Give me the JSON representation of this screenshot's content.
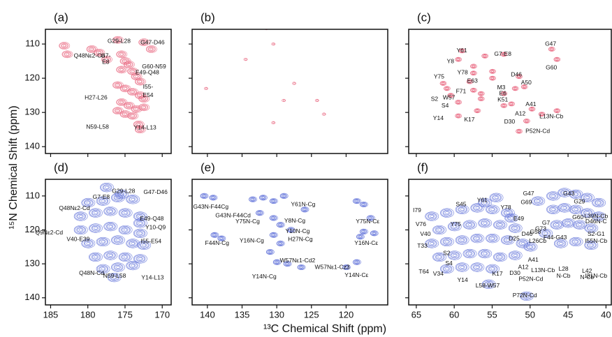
{
  "figure": {
    "ylabel": "¹⁵N Chemical Shift (ppm)",
    "xlabel": "¹³C Chemical Shift (ppm)"
  },
  "chart_data": [
    {
      "type": "contour",
      "title": "(a)",
      "color": "#e8607a",
      "xlim": [
        185.7,
        168.8
      ],
      "ylim": [
        105.7,
        142
      ],
      "xticks": [
        185,
        180,
        175,
        170
      ],
      "yticks": [
        110,
        120,
        130,
        140
      ],
      "xtick_labels": false,
      "ytick_labels": true,
      "peaks": {
        "x": [
          183.2,
          182.8,
          179.5,
          177.5,
          176.0,
          175.5,
          175.0,
          174.5,
          174.0,
          173.5,
          173.0,
          176.0,
          175.0,
          174.0,
          173.0,
          172.5,
          175.5,
          174.5,
          173.5,
          176.0,
          175.0,
          174.0,
          172.5,
          171.5,
          172.5,
          175.5,
          173.2,
          173.0,
          178.5
        ],
        "y": [
          110.5,
          113.0,
          111.5,
          114.5,
          108.8,
          113.0,
          115.0,
          116.0,
          118.0,
          119.5,
          121.0,
          122.0,
          123.0,
          124.0,
          125.0,
          126.0,
          127.0,
          128.0,
          129.0,
          129.5,
          130.5,
          131.0,
          128.5,
          111.5,
          109.5,
          117.5,
          133.5,
          135.0,
          112.5
        ]
      },
      "annotations": [
        {
          "text": "Q48Nε2-Cd",
          "x": 179.8,
          "y": 113.5
        },
        {
          "text": "G29-L28",
          "x": 175.8,
          "y": 109.2
        },
        {
          "text": "G47-D46",
          "x": 171.3,
          "y": 109.6
        },
        {
          "text": "G7-",
          "x": 177.6,
          "y": 113.5
        },
        {
          "text": "E8",
          "x": 177.6,
          "y": 115.3
        },
        {
          "text": "G60-N59",
          "x": 171.1,
          "y": 116.7
        },
        {
          "text": "E49-Q48",
          "x": 172.0,
          "y": 118.4
        },
        {
          "text": "I55-",
          "x": 171.9,
          "y": 122.6
        },
        {
          "text": "E54",
          "x": 171.9,
          "y": 125.0
        },
        {
          "text": "H27-L26",
          "x": 178.9,
          "y": 125.7
        },
        {
          "text": "N59-L58",
          "x": 178.7,
          "y": 134.3
        },
        {
          "text": "Y14-L13",
          "x": 172.3,
          "y": 134.5
        }
      ]
    },
    {
      "type": "contour",
      "title": "(b)",
      "color": "#e8607a",
      "xlim": [
        142.2,
        114
      ],
      "ylim": [
        105.7,
        142
      ],
      "xticks": [
        140,
        135,
        130,
        125,
        120
      ],
      "yticks": [
        110,
        120,
        130,
        140
      ],
      "xtick_labels": false,
      "ytick_labels": false,
      "peaks": {
        "x": [
          131.5,
          130.5,
          140.2,
          127.5,
          124.2,
          123.2,
          130.5,
          134.5,
          129.0
        ],
        "y": [
          105.5,
          110.0,
          123.0,
          121.5,
          126.5,
          130.5,
          133.0,
          114.5,
          126.5
        ]
      },
      "annotations": []
    },
    {
      "type": "contour",
      "title": "(c)",
      "color": "#e8607a",
      "xlim": [
        66,
        39.3
      ],
      "ylim": [
        105.7,
        142
      ],
      "xticks": [
        65,
        60,
        55,
        50,
        45,
        40
      ],
      "yticks": [
        110,
        120,
        130,
        140
      ],
      "xtick_labels": false,
      "ytick_labels": false,
      "peaks": {
        "x": [
          59.5,
          59.0,
          57.5,
          56.0,
          53.5,
          47.2,
          46.5,
          55.0,
          61.5,
          58.0,
          57.5,
          60.5,
          59.5,
          56.5,
          57.0,
          53.5,
          52.5,
          51.5,
          50.8,
          49.8,
          50.5,
          61.0,
          59.5,
          56.5,
          55.0,
          52.0,
          48.5,
          46.5,
          57.5,
          53.5,
          51.5
        ],
        "y": [
          114.5,
          112.0,
          116.5,
          113.5,
          113.0,
          111.5,
          114.5,
          118.0,
          121.5,
          121.0,
          123.5,
          125.0,
          127.0,
          126.0,
          129.5,
          124.5,
          127.5,
          119.5,
          122.5,
          129.0,
          132.5,
          123.0,
          131.0,
          124.5,
          120.0,
          123.0,
          130.5,
          129.5,
          118.5,
          128.0,
          135.5
        ]
      },
      "annotations": [
        {
          "text": "Y61",
          "x": 59.0,
          "y": 112.0
        },
        {
          "text": "G7-E8",
          "x": 53.6,
          "y": 113.0
        },
        {
          "text": "G47",
          "x": 47.3,
          "y": 110.0
        },
        {
          "text": "Y8",
          "x": 60.5,
          "y": 115.1
        },
        {
          "text": "G60",
          "x": 47.2,
          "y": 117.0
        },
        {
          "text": "Y78",
          "x": 58.9,
          "y": 118.4
        },
        {
          "text": "Y75",
          "x": 62.0,
          "y": 119.6
        },
        {
          "text": "D46",
          "x": 51.8,
          "y": 119.0
        },
        {
          "text": "A50",
          "x": 50.5,
          "y": 121.4
        },
        {
          "text": "E63",
          "x": 57.6,
          "y": 120.8
        },
        {
          "text": "M3",
          "x": 53.8,
          "y": 122.8
        },
        {
          "text": "E6",
          "x": 53.6,
          "y": 124.5
        },
        {
          "text": "F71",
          "x": 59.1,
          "y": 123.9
        },
        {
          "text": "W57",
          "x": 60.7,
          "y": 125.7
        },
        {
          "text": "K51",
          "x": 53.6,
          "y": 126.3
        },
        {
          "text": "S2",
          "x": 62.6,
          "y": 126.1
        },
        {
          "text": "S4",
          "x": 61.2,
          "y": 128.1
        },
        {
          "text": "A41",
          "x": 49.9,
          "y": 127.7
        },
        {
          "text": "A12",
          "x": 51.3,
          "y": 130.4
        },
        {
          "text": "Y14",
          "x": 62.1,
          "y": 131.8
        },
        {
          "text": "K17",
          "x": 58.0,
          "y": 132.2
        },
        {
          "text": "D30",
          "x": 52.7,
          "y": 132.8
        },
        {
          "text": "L13N-Cb",
          "x": 47.2,
          "y": 131.2
        },
        {
          "text": "P52N-Cd",
          "x": 49.0,
          "y": 135.5
        }
      ]
    },
    {
      "type": "contour",
      "title": "(d)",
      "color": "#5466d6",
      "xlim": [
        185.7,
        168.8
      ],
      "ylim": [
        105.1,
        142.1
      ],
      "xticks": [
        185,
        180,
        175,
        170
      ],
      "yticks": [
        110,
        120,
        130,
        140
      ],
      "xtick_labels": true,
      "ytick_labels": true,
      "peaks": {
        "x": [
          180,
          178,
          176,
          174,
          181,
          179,
          177,
          175,
          173,
          181,
          179,
          177,
          175,
          173,
          180,
          178,
          176,
          174,
          172.5,
          179,
          177,
          175,
          173,
          178,
          176,
          174,
          175.5,
          177.5,
          173,
          176.5
        ],
        "y": [
          112,
          111.5,
          110.5,
          111,
          116,
          115,
          114.5,
          115,
          116,
          120,
          119.5,
          119,
          120,
          121,
          124,
          123.5,
          123,
          124,
          124.5,
          128,
          127.5,
          128,
          128.5,
          131.5,
          131,
          130.5,
          109.5,
          107.5,
          118,
          134
        ]
      },
      "annotations": [
        {
          "text": "G7-E8",
          "x": 178.2,
          "y": 110.4
        },
        {
          "text": "G29-L28",
          "x": 175.2,
          "y": 108.6
        },
        {
          "text": "G47-D46",
          "x": 170.9,
          "y": 109.0
        },
        {
          "text": "Q48Nε2-Cd",
          "x": 181.8,
          "y": 113.7
        },
        {
          "text": "E49-Q48",
          "x": 171.4,
          "y": 116.8
        },
        {
          "text": "Y10-Q9",
          "x": 170.9,
          "y": 119.3
        },
        {
          "text": "Q9Nε2-Cd",
          "x": 185.2,
          "y": 120.9
        },
        {
          "text": "V40-E39",
          "x": 181.3,
          "y": 122.8
        },
        {
          "text": "I55-E54",
          "x": 171.5,
          "y": 123.4
        },
        {
          "text": "Q48N-Cd",
          "x": 179.5,
          "y": 132.8
        },
        {
          "text": "N59-L58",
          "x": 176.4,
          "y": 133.6
        },
        {
          "text": "Y14-L13",
          "x": 171.3,
          "y": 134.1
        }
      ]
    },
    {
      "type": "contour",
      "title": "(e)",
      "color": "#5466d6",
      "xlim": [
        142.2,
        114
      ],
      "ylim": [
        105.1,
        142.1
      ],
      "xticks": [
        140,
        135,
        130,
        125,
        120
      ],
      "yticks": [
        110,
        120,
        130,
        140
      ],
      "xtick_labels": true,
      "ytick_labels": false,
      "peaks": {
        "x": [
          140.5,
          139.2,
          133.5,
          132.0,
          130.5,
          129.0,
          132.5,
          130.5,
          129.5,
          128.0,
          130.5,
          129.5,
          131.0,
          139.0,
          138.0,
          130.0,
          128.5,
          126.5,
          118.5,
          117.5,
          116.5,
          117.5,
          118.0,
          116.0,
          118.5,
          120.0,
          126.0
        ],
        "y": [
          110.0,
          110.5,
          111.0,
          110.5,
          111.5,
          110.0,
          115.0,
          116.5,
          118.5,
          120.0,
          121.5,
          124.0,
          126.5,
          121.5,
          122.5,
          129.5,
          130.0,
          131.0,
          111.5,
          112.5,
          116.5,
          120.5,
          122.0,
          121.0,
          129.5,
          131.0,
          114.0
        ]
      },
      "annotations": [
        {
          "text": "G43N-F44Cg",
          "x": 139.5,
          "y": 113.3
        },
        {
          "text": "Y61N-Cg",
          "x": 126.2,
          "y": 112.5
        },
        {
          "text": "G43N-F44Cd",
          "x": 136.3,
          "y": 115.8
        },
        {
          "text": "Y75N-Cg",
          "x": 134.2,
          "y": 117.6
        },
        {
          "text": "Y8N-Cg",
          "x": 127.4,
          "y": 117.4
        },
        {
          "text": "Y10N-Cg",
          "x": 127.0,
          "y": 120.5
        },
        {
          "text": "Y16N-Cg",
          "x": 133.6,
          "y": 123.2
        },
        {
          "text": "H27N-Cg",
          "x": 126.6,
          "y": 122.8
        },
        {
          "text": "F44N-Cg",
          "x": 138.6,
          "y": 124.0
        },
        {
          "text": "W57Nε1-Cd2",
          "x": 127.0,
          "y": 129.1
        },
        {
          "text": "W57Nε1-Cz3",
          "x": 122.0,
          "y": 131.0
        },
        {
          "text": "Y14N-Cg",
          "x": 131.8,
          "y": 133.8
        },
        {
          "text": "Y75N-Cε",
          "x": 116.9,
          "y": 117.6
        },
        {
          "text": "Y16N-Cε",
          "x": 117.1,
          "y": 124.0
        },
        {
          "text": "Y14N-Cε",
          "x": 118.5,
          "y": 133.4
        }
      ]
    },
    {
      "type": "contour",
      "title": "(f)",
      "color": "#5466d6",
      "xlim": [
        66,
        39.3
      ],
      "ylim": [
        105.1,
        142.1
      ],
      "xticks": [
        65,
        60,
        55,
        50,
        45,
        40
      ],
      "yticks": [
        110,
        120,
        130,
        140
      ],
      "xtick_labels": true,
      "ytick_labels": false,
      "peaks": {
        "x": [
          63,
          61,
          59,
          57,
          55,
          53,
          62,
          60,
          58,
          56,
          54,
          52,
          63,
          61,
          59,
          57,
          55,
          53,
          51,
          62,
          60,
          58,
          56,
          54,
          61,
          59,
          57,
          55,
          47,
          45.5,
          44,
          42.5,
          41,
          47,
          45.5,
          44,
          42.5,
          41,
          46.5,
          45,
          43.5,
          42,
          46,
          44,
          42,
          48,
          50,
          52,
          55.5,
          50.5,
          56,
          54.5,
          49,
          52.5
        ],
        "y": [
          116,
          115,
          114,
          113.5,
          114,
          115,
          120,
          119,
          118.5,
          118,
          118.5,
          119.5,
          124,
          123.5,
          123,
          122.5,
          122.5,
          123,
          124,
          128,
          127.5,
          127,
          127,
          128,
          131.5,
          131,
          131,
          131.5,
          110,
          109,
          109.5,
          110.5,
          112,
          114,
          113.5,
          114,
          115,
          116,
          118.5,
          118,
          118.5,
          119.5,
          124,
          123.5,
          124.5,
          121,
          125,
          127.5,
          136,
          139.5,
          112,
          110.5,
          111.5,
          116.5
        ]
      },
      "annotations": [
        {
          "text": "S45",
          "x": 59.1,
          "y": 112.5
        },
        {
          "text": "Y61",
          "x": 56.3,
          "y": 111.3
        },
        {
          "text": "G47",
          "x": 50.2,
          "y": 109.4
        },
        {
          "text": "G43",
          "x": 44.9,
          "y": 109.4
        },
        {
          "text": "G29",
          "x": 43.5,
          "y": 111.7
        },
        {
          "text": "G69",
          "x": 50.5,
          "y": 111.9
        },
        {
          "text": "Y78",
          "x": 53.2,
          "y": 113.5
        },
        {
          "text": "I79",
          "x": 64.9,
          "y": 114.3
        },
        {
          "text": "E49",
          "x": 51.5,
          "y": 116.8
        },
        {
          "text": "G60",
          "x": 43.7,
          "y": 116.4
        },
        {
          "text": "L39N-Cb",
          "x": 41.3,
          "y": 116.0
        },
        {
          "text": "D46N-C",
          "x": 41.3,
          "y": 117.6
        },
        {
          "text": "V76",
          "x": 64.4,
          "y": 118.4
        },
        {
          "text": "Y75",
          "x": 59.8,
          "y": 118.4
        },
        {
          "text": "G7",
          "x": 47.9,
          "y": 118.0
        },
        {
          "text": "G73",
          "x": 48.6,
          "y": 119.7
        },
        {
          "text": "V40",
          "x": 63.8,
          "y": 121.3
        },
        {
          "text": "D25",
          "x": 52.1,
          "y": 122.6
        },
        {
          "text": "D46",
          "x": 50.4,
          "y": 121.3
        },
        {
          "text": "G58",
          "x": 49.3,
          "y": 120.7
        },
        {
          "text": "F44-G43",
          "x": 46.7,
          "y": 122.3
        },
        {
          "text": "S2-G1",
          "x": 41.3,
          "y": 121.3
        },
        {
          "text": "L26Cb",
          "x": 49.0,
          "y": 123.3
        },
        {
          "text": "I55N-Cb",
          "x": 41.3,
          "y": 123.3
        },
        {
          "text": "T33",
          "x": 64.2,
          "y": 124.8
        },
        {
          "text": "S2",
          "x": 61.0,
          "y": 126.9
        },
        {
          "text": "A41",
          "x": 49.6,
          "y": 128.9
        },
        {
          "text": "S4",
          "x": 60.7,
          "y": 129.9
        },
        {
          "text": "L13N-Cb",
          "x": 48.3,
          "y": 132.0
        },
        {
          "text": "L28",
          "x": 45.6,
          "y": 131.6
        },
        {
          "text": "N-Cb",
          "x": 45.6,
          "y": 133.6
        },
        {
          "text": "L42",
          "x": 42.5,
          "y": 132.2
        },
        {
          "text": "N-Cb",
          "x": 42.5,
          "y": 134.0
        },
        {
          "text": "I31N-Cb",
          "x": 41.3,
          "y": 133.6
        },
        {
          "text": "T64",
          "x": 64.0,
          "y": 132.4
        },
        {
          "text": "V34",
          "x": 62.1,
          "y": 133.0
        },
        {
          "text": "A12",
          "x": 50.9,
          "y": 131.0
        },
        {
          "text": "K17",
          "x": 54.3,
          "y": 133.0
        },
        {
          "text": "D30",
          "x": 52.0,
          "y": 132.8
        },
        {
          "text": "Y14",
          "x": 58.9,
          "y": 134.9
        },
        {
          "text": "P52N-Cd",
          "x": 49.9,
          "y": 134.5
        },
        {
          "text": "L58-W57",
          "x": 55.6,
          "y": 136.5
        },
        {
          "text": "P72N-Cd",
          "x": 50.7,
          "y": 139.4
        }
      ]
    }
  ]
}
